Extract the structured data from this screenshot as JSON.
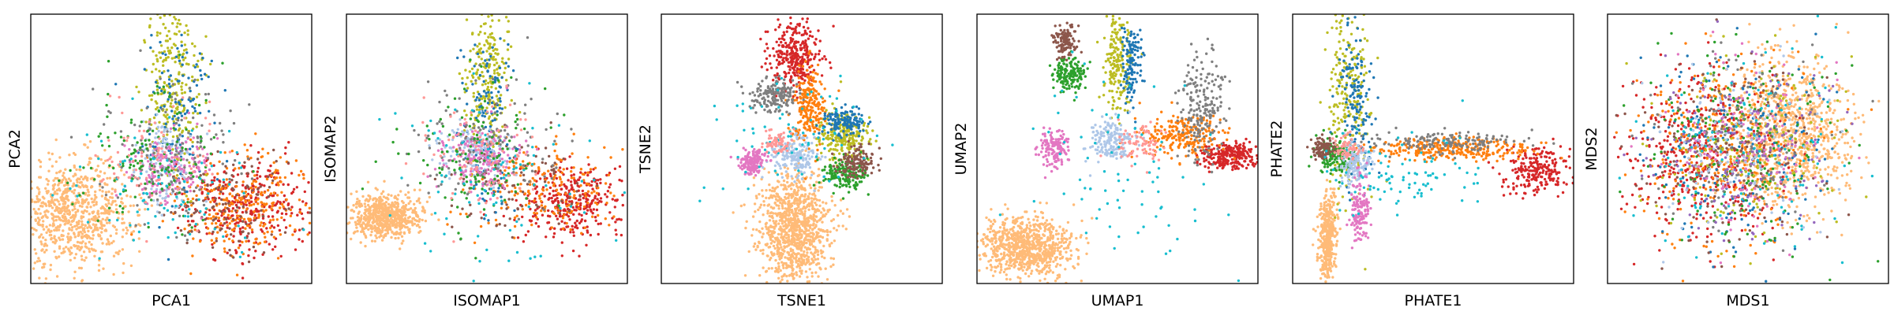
{
  "chart_data": [
    {
      "type": "scatter",
      "xlabel": "PCA1",
      "ylabel": "PCA2",
      "clusters": [
        {
          "cx": -0.7,
          "cy": -0.48,
          "sx": 0.22,
          "sy": 0.2,
          "n": 850,
          "color": "#ffbb78"
        },
        {
          "cx": 0.58,
          "cy": -0.42,
          "sx": 0.24,
          "sy": 0.18,
          "n": 330,
          "color": "#d62728"
        },
        {
          "cx": 0.5,
          "cy": -0.4,
          "sx": 0.25,
          "sy": 0.2,
          "n": 280,
          "color": "#ff7f0e"
        },
        {
          "cx": 0.4,
          "cy": -0.44,
          "sx": 0.24,
          "sy": 0.18,
          "n": 130,
          "color": "#8c564b"
        },
        {
          "cx": 0.0,
          "cy": 0.55,
          "sx": 0.1,
          "sy": 0.35,
          "n": 280,
          "color": "#bcbd22"
        },
        {
          "cx": 0.05,
          "cy": 0.3,
          "sx": 0.12,
          "sy": 0.35,
          "n": 130,
          "color": "#1f77b4"
        },
        {
          "cx": -0.05,
          "cy": -0.1,
          "sx": 0.1,
          "sy": 0.15,
          "n": 140,
          "color": "#aec7e8"
        },
        {
          "cx": 0.0,
          "cy": -0.15,
          "sx": 0.14,
          "sy": 0.14,
          "n": 160,
          "color": "#e377c2"
        },
        {
          "cx": -0.05,
          "cy": -0.05,
          "sx": 0.25,
          "sy": 0.25,
          "n": 140,
          "color": "#7f7f7f"
        },
        {
          "cx": -0.15,
          "cy": -0.05,
          "sx": 0.25,
          "sy": 0.3,
          "n": 130,
          "color": "#2ca02c"
        },
        {
          "cx": 0.0,
          "cy": -0.3,
          "sx": 0.35,
          "sy": 0.25,
          "n": 90,
          "color": "#17becf"
        },
        {
          "cx": -0.1,
          "cy": -0.1,
          "sx": 0.2,
          "sy": 0.2,
          "n": 80,
          "color": "#ff9896"
        }
      ]
    },
    {
      "type": "scatter",
      "xlabel": "ISOMAP1",
      "ylabel": "ISOMAP2",
      "clusters": [
        {
          "cx": -0.72,
          "cy": -0.5,
          "sx": 0.12,
          "sy": 0.08,
          "n": 650,
          "color": "#ffbb78"
        },
        {
          "cx": 0.6,
          "cy": -0.4,
          "sx": 0.18,
          "sy": 0.14,
          "n": 330,
          "color": "#d62728"
        },
        {
          "cx": 0.4,
          "cy": -0.3,
          "sx": 0.25,
          "sy": 0.18,
          "n": 200,
          "color": "#ff7f0e"
        },
        {
          "cx": 0.2,
          "cy": -0.25,
          "sx": 0.25,
          "sy": 0.2,
          "n": 100,
          "color": "#8c564b"
        },
        {
          "cx": 0.0,
          "cy": 0.55,
          "sx": 0.08,
          "sy": 0.3,
          "n": 260,
          "color": "#bcbd22"
        },
        {
          "cx": 0.0,
          "cy": 0.2,
          "sx": 0.1,
          "sy": 0.3,
          "n": 130,
          "color": "#1f77b4"
        },
        {
          "cx": -0.1,
          "cy": 0.0,
          "sx": 0.12,
          "sy": 0.1,
          "n": 140,
          "color": "#aec7e8"
        },
        {
          "cx": -0.05,
          "cy": -0.05,
          "sx": 0.15,
          "sy": 0.12,
          "n": 180,
          "color": "#e377c2"
        },
        {
          "cx": -0.05,
          "cy": 0.05,
          "sx": 0.25,
          "sy": 0.25,
          "n": 130,
          "color": "#7f7f7f"
        },
        {
          "cx": -0.1,
          "cy": 0.0,
          "sx": 0.25,
          "sy": 0.28,
          "n": 120,
          "color": "#2ca02c"
        },
        {
          "cx": 0.0,
          "cy": -0.3,
          "sx": 0.35,
          "sy": 0.3,
          "n": 90,
          "color": "#17becf"
        },
        {
          "cx": -0.05,
          "cy": 0.0,
          "sx": 0.2,
          "sy": 0.2,
          "n": 80,
          "color": "#ff9896"
        }
      ]
    },
    {
      "type": "scatter",
      "xlabel": "TSNE1",
      "ylabel": "TSNE2",
      "clusters": [
        {
          "cx": -0.05,
          "cy": -0.6,
          "sx": 0.13,
          "sy": 0.22,
          "n": 1000,
          "color": "#ffbb78"
        },
        {
          "cx": -0.05,
          "cy": 0.7,
          "sx": 0.09,
          "sy": 0.13,
          "n": 320,
          "color": "#d62728"
        },
        {
          "cx": 0.05,
          "cy": 0.3,
          "sx": 0.06,
          "sy": 0.14,
          "n": 230,
          "color": "#ff7f0e"
        },
        {
          "cx": 0.3,
          "cy": 0.1,
          "sx": 0.09,
          "sy": 0.09,
          "n": 230,
          "color": "#bcbd22"
        },
        {
          "cx": 0.3,
          "cy": 0.2,
          "sx": 0.08,
          "sy": 0.05,
          "n": 140,
          "color": "#1f77b4"
        },
        {
          "cx": -0.2,
          "cy": 0.4,
          "sx": 0.08,
          "sy": 0.06,
          "n": 170,
          "color": "#7f7f7f"
        },
        {
          "cx": -0.05,
          "cy": -0.05,
          "sx": 0.08,
          "sy": 0.07,
          "n": 170,
          "color": "#aec7e8"
        },
        {
          "cx": 0.3,
          "cy": -0.18,
          "sx": 0.08,
          "sy": 0.06,
          "n": 160,
          "color": "#2ca02c"
        },
        {
          "cx": 0.4,
          "cy": -0.1,
          "sx": 0.07,
          "sy": 0.06,
          "n": 130,
          "color": "#8c564b"
        },
        {
          "cx": -0.35,
          "cy": -0.1,
          "sx": 0.05,
          "sy": 0.05,
          "n": 150,
          "color": "#e377c2"
        },
        {
          "cx": -0.1,
          "cy": 0.1,
          "sx": 0.3,
          "sy": 0.25,
          "n": 80,
          "color": "#17becf"
        },
        {
          "cx": -0.18,
          "cy": 0.05,
          "sx": 0.05,
          "sy": 0.05,
          "n": 70,
          "color": "#ff9896"
        }
      ]
    },
    {
      "type": "scatter",
      "xlabel": "UMAP1",
      "ylabel": "UMAP2",
      "clusters": [
        {
          "cx": -0.65,
          "cy": -0.72,
          "sx": 0.16,
          "sy": 0.11,
          "n": 850,
          "color": "#ffbb78"
        },
        {
          "cx": 0.8,
          "cy": -0.05,
          "sx": 0.09,
          "sy": 0.05,
          "n": 260,
          "color": "#d62728"
        },
        {
          "cx": 0.45,
          "cy": 0.1,
          "sx": 0.14,
          "sy": 0.08,
          "n": 220,
          "color": "#ff7f0e"
        },
        {
          "cx": 0.6,
          "cy": 0.3,
          "sx": 0.08,
          "sy": 0.2,
          "n": 200,
          "color": "#7f7f7f"
        },
        {
          "cx": 0.0,
          "cy": 0.65,
          "sx": 0.05,
          "sy": 0.18,
          "n": 200,
          "color": "#bcbd22"
        },
        {
          "cx": 0.1,
          "cy": 0.65,
          "sx": 0.04,
          "sy": 0.15,
          "n": 130,
          "color": "#1f77b4"
        },
        {
          "cx": -0.35,
          "cy": 0.55,
          "sx": 0.06,
          "sy": 0.06,
          "n": 150,
          "color": "#2ca02c"
        },
        {
          "cx": -0.37,
          "cy": 0.8,
          "sx": 0.04,
          "sy": 0.06,
          "n": 120,
          "color": "#8c564b"
        },
        {
          "cx": -0.05,
          "cy": 0.05,
          "sx": 0.08,
          "sy": 0.08,
          "n": 170,
          "color": "#aec7e8"
        },
        {
          "cx": -0.45,
          "cy": 0.0,
          "sx": 0.05,
          "sy": 0.07,
          "n": 140,
          "color": "#e377c2"
        },
        {
          "cx": 0.15,
          "cy": 0.05,
          "sx": 0.08,
          "sy": 0.08,
          "n": 80,
          "color": "#ff9896"
        },
        {
          "cx": 0.0,
          "cy": -0.15,
          "sx": 0.35,
          "sy": 0.35,
          "n": 80,
          "color": "#17becf"
        }
      ]
    },
    {
      "type": "scatter",
      "xlabel": "PHATE1",
      "ylabel": "PHATE2",
      "clusters": [
        {
          "cx": -0.75,
          "cy": -0.65,
          "sx": 0.03,
          "sy": 0.17,
          "n": 420,
          "color": "#ffbb78"
        },
        {
          "cx": 0.75,
          "cy": -0.15,
          "sx": 0.12,
          "sy": 0.09,
          "n": 220,
          "color": "#d62728"
        },
        {
          "cx": 0.1,
          "cy": 0.0,
          "sx": 0.3,
          "sy": 0.04,
          "n": 300,
          "color": "#ff7f0e"
        },
        {
          "cx": -0.6,
          "cy": 0.35,
          "sx": 0.08,
          "sy": 0.38,
          "n": 260,
          "color": "#bcbd22"
        },
        {
          "cx": -0.55,
          "cy": 0.35,
          "sx": 0.06,
          "sy": 0.3,
          "n": 160,
          "color": "#1f77b4"
        },
        {
          "cx": 0.1,
          "cy": 0.05,
          "sx": 0.25,
          "sy": 0.04,
          "n": 150,
          "color": "#7f7f7f"
        },
        {
          "cx": -0.7,
          "cy": -0.05,
          "sx": 0.06,
          "sy": 0.06,
          "n": 140,
          "color": "#2ca02c"
        },
        {
          "cx": -0.78,
          "cy": 0.0,
          "sx": 0.04,
          "sy": 0.04,
          "n": 90,
          "color": "#8c564b"
        },
        {
          "cx": -0.55,
          "cy": -0.1,
          "sx": 0.06,
          "sy": 0.08,
          "n": 140,
          "color": "#aec7e8"
        },
        {
          "cx": -0.52,
          "cy": -0.45,
          "sx": 0.03,
          "sy": 0.13,
          "n": 140,
          "color": "#e377c2"
        },
        {
          "cx": -0.2,
          "cy": -0.2,
          "sx": 0.28,
          "sy": 0.15,
          "n": 90,
          "color": "#17becf"
        },
        {
          "cx": -0.6,
          "cy": 0.0,
          "sx": 0.05,
          "sy": 0.05,
          "n": 60,
          "color": "#ff9896"
        }
      ]
    },
    {
      "type": "scatter",
      "xlabel": "MDS1",
      "ylabel": "MDS2",
      "clusters": [
        {
          "cx": 0.3,
          "cy": 0.12,
          "sx": 0.22,
          "sy": 0.28,
          "n": 900,
          "color": "#ffbb78"
        },
        {
          "cx": -0.35,
          "cy": -0.05,
          "sx": 0.27,
          "sy": 0.32,
          "n": 420,
          "color": "#d62728"
        },
        {
          "cx": -0.15,
          "cy": 0.0,
          "sx": 0.32,
          "sy": 0.33,
          "n": 330,
          "color": "#ff7f0e"
        },
        {
          "cx": -0.1,
          "cy": 0.0,
          "sx": 0.34,
          "sy": 0.34,
          "n": 180,
          "color": "#1f77b4"
        },
        {
          "cx": -0.05,
          "cy": 0.0,
          "sx": 0.34,
          "sy": 0.34,
          "n": 180,
          "color": "#2ca02c"
        },
        {
          "cx": 0.0,
          "cy": 0.0,
          "sx": 0.34,
          "sy": 0.34,
          "n": 180,
          "color": "#bcbd22"
        },
        {
          "cx": -0.1,
          "cy": 0.0,
          "sx": 0.34,
          "sy": 0.34,
          "n": 150,
          "color": "#8c564b"
        },
        {
          "cx": -0.05,
          "cy": 0.05,
          "sx": 0.3,
          "sy": 0.3,
          "n": 150,
          "color": "#7f7f7f"
        },
        {
          "cx": 0.0,
          "cy": 0.0,
          "sx": 0.32,
          "sy": 0.32,
          "n": 150,
          "color": "#9467bd"
        },
        {
          "cx": -0.05,
          "cy": 0.0,
          "sx": 0.3,
          "sy": 0.3,
          "n": 130,
          "color": "#e377c2"
        },
        {
          "cx": 0.0,
          "cy": 0.0,
          "sx": 0.33,
          "sy": 0.33,
          "n": 120,
          "color": "#17becf"
        },
        {
          "cx": -0.1,
          "cy": 0.0,
          "sx": 0.3,
          "sy": 0.3,
          "n": 100,
          "color": "#aec7e8"
        }
      ]
    }
  ]
}
